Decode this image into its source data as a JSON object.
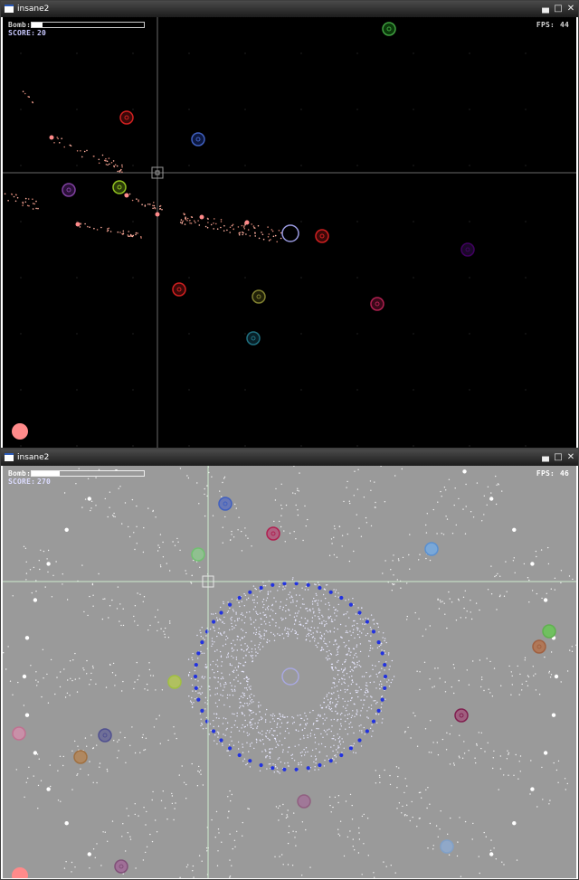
{
  "windows": [
    {
      "title": "insane2",
      "hud": {
        "bomb_label": "Bomb:",
        "bomb_level": 0.1,
        "score_label": "SCORE:",
        "score": "20",
        "fps_label": "FPS:",
        "fps": "44"
      },
      "colors": {
        "background": "#000000",
        "hud_text": "#d8d8d8",
        "score_text": "#c8c8ff",
        "crosshair": "#707070"
      }
    },
    {
      "title": "insane2",
      "hud": {
        "bomb_label": "Bomb:",
        "bomb_level": 0.25,
        "score_label": "SCORE:",
        "score": "270",
        "fps_label": "FPS:",
        "fps": "46"
      },
      "colors": {
        "background": "#9a9a9a",
        "hud_text": "#ffffff",
        "score_text": "#dcdcff",
        "crosshair": "#c8f0c8"
      }
    }
  ],
  "icons": {
    "minimize": "minimize-icon",
    "maximize": "maximize-icon",
    "close": "close-icon",
    "app": "app-window-icon"
  },
  "enemy_colors": [
    "#d02020",
    "#4060c0",
    "#8040a0",
    "#90c020",
    "#40a040",
    "#b02050",
    "#606020",
    "#207080",
    "#400060"
  ]
}
